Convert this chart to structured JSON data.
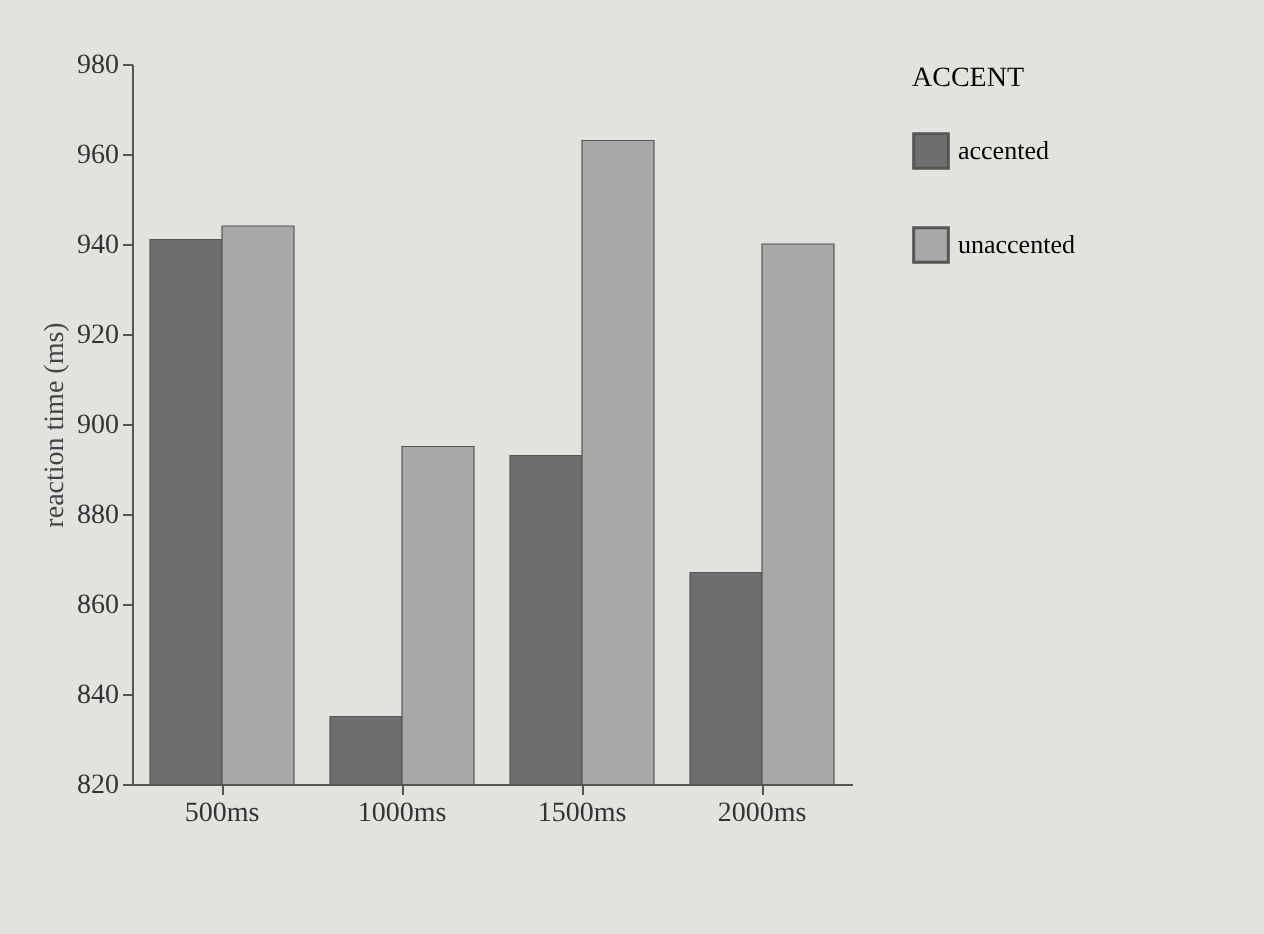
{
  "chart_data": {
    "type": "bar",
    "ylabel": "reaction time (ms)",
    "legend_title": "ACCENT",
    "categories": [
      "500ms",
      "1000ms",
      "1500ms",
      "2000ms"
    ],
    "series": [
      {
        "name": "accented",
        "color": "#6e6e6e",
        "values": [
          941,
          835,
          893,
          867
        ]
      },
      {
        "name": "unaccented",
        "color": "#a8a8a8",
        "values": [
          944,
          895,
          963,
          940
        ]
      }
    ],
    "ylim": [
      820,
      980
    ],
    "yticks": [
      820,
      840,
      860,
      880,
      900,
      920,
      940,
      960,
      980
    ],
    "legend": "right"
  }
}
